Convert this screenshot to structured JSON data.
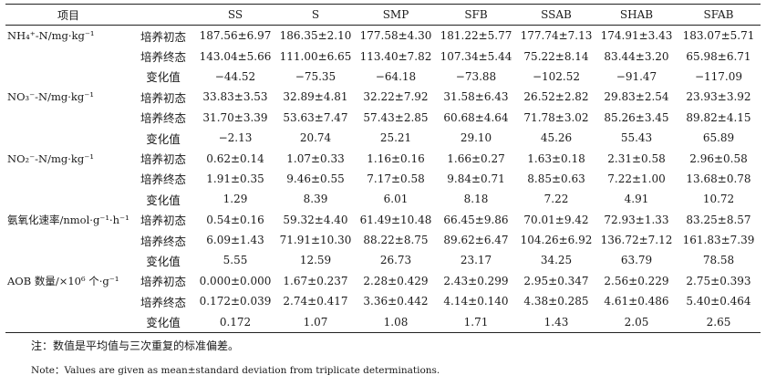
{
  "header": {
    "item": "项目",
    "columns": [
      "SS",
      "S",
      "SMP",
      "SFB",
      "SSAB",
      "SHAB",
      "SFAB"
    ]
  },
  "groups": [
    {
      "label": "NH₄⁺-N/mg·kg⁻¹",
      "rows": [
        {
          "stage": "培养初态",
          "values": [
            "187.56±6.97",
            "186.35±2.10",
            "177.58±4.30",
            "181.22±5.77",
            "177.74±7.13",
            "174.91±3.43",
            "183.07±5.71"
          ]
        },
        {
          "stage": "培养终态",
          "values": [
            "143.04±5.66",
            "111.00±6.65",
            "113.40±7.82",
            "107.34±5.44",
            "75.22±8.14",
            "83.44±3.20",
            "65.98±6.71"
          ]
        },
        {
          "stage": "变化值",
          "values": [
            "−44.52",
            "−75.35",
            "−64.18",
            "−73.88",
            "−102.52",
            "−91.47",
            "−117.09"
          ]
        }
      ]
    },
    {
      "label": "NO₃⁻-N/mg·kg⁻¹",
      "rows": [
        {
          "stage": "培养初态",
          "values": [
            "33.83±3.53",
            "32.89±4.81",
            "32.22±7.92",
            "31.58±6.43",
            "26.52±2.82",
            "29.83±2.54",
            "23.93±3.92"
          ]
        },
        {
          "stage": "培养终态",
          "values": [
            "31.70±3.39",
            "53.63±7.47",
            "57.43±2.85",
            "60.68±4.64",
            "71.78±3.02",
            "85.26±3.45",
            "89.82±4.15"
          ]
        },
        {
          "stage": "变化值",
          "values": [
            "−2.13",
            "20.74",
            "25.21",
            "29.10",
            "45.26",
            "55.43",
            "65.89"
          ]
        }
      ]
    },
    {
      "label": "NO₂⁻-N/mg·kg⁻¹",
      "rows": [
        {
          "stage": "培养初态",
          "values": [
            "0.62±0.14",
            "1.07±0.33",
            "1.16±0.16",
            "1.66±0.27",
            "1.63±0.18",
            "2.31±0.58",
            "2.96±0.58"
          ]
        },
        {
          "stage": "培养终态",
          "values": [
            "1.91±0.35",
            "9.46±0.55",
            "7.17±0.58",
            "9.84±0.71",
            "8.85±0.63",
            "7.22±1.00",
            "13.68±0.78"
          ]
        },
        {
          "stage": "变化值",
          "values": [
            "1.29",
            "8.39",
            "6.01",
            "8.18",
            "7.22",
            "4.91",
            "10.72"
          ]
        }
      ]
    },
    {
      "label": "氨氧化速率/nmol·g⁻¹·h⁻¹",
      "rows": [
        {
          "stage": "培养初态",
          "values": [
            "0.54±0.16",
            "59.32±4.40",
            "61.49±10.48",
            "66.45±9.86",
            "70.01±9.42",
            "72.93±1.33",
            "83.25±8.57"
          ]
        },
        {
          "stage": "培养终态",
          "values": [
            "6.09±1.43",
            "71.91±10.30",
            "88.22±8.75",
            "89.62±6.47",
            "104.26±6.92",
            "136.72±7.12",
            "161.83±7.39"
          ]
        },
        {
          "stage": "变化值",
          "values": [
            "5.55",
            "12.59",
            "26.73",
            "23.17",
            "34.25",
            "63.79",
            "78.58"
          ]
        }
      ]
    },
    {
      "label": "AOB 数量/×10⁶ 个·g⁻¹",
      "rows": [
        {
          "stage": "培养初态",
          "values": [
            "0.000±0.000",
            "1.67±0.237",
            "2.28±0.429",
            "2.43±0.299",
            "2.95±0.347",
            "2.56±0.229",
            "2.75±0.393"
          ]
        },
        {
          "stage": "培养终态",
          "values": [
            "0.172±0.039",
            "2.74±0.417",
            "3.36±0.442",
            "4.14±0.140",
            "4.38±0.285",
            "4.61±0.486",
            "5.40±0.464"
          ]
        },
        {
          "stage": "变化值",
          "values": [
            "0.172",
            "1.07",
            "1.08",
            "1.71",
            "1.43",
            "2.05",
            "2.65"
          ]
        }
      ]
    }
  ],
  "notes": {
    "cn": "注：数值是平均值与三次重复的标准偏差。",
    "en": "Note：Values are given as mean±standard deviation from triplicate determinations."
  }
}
